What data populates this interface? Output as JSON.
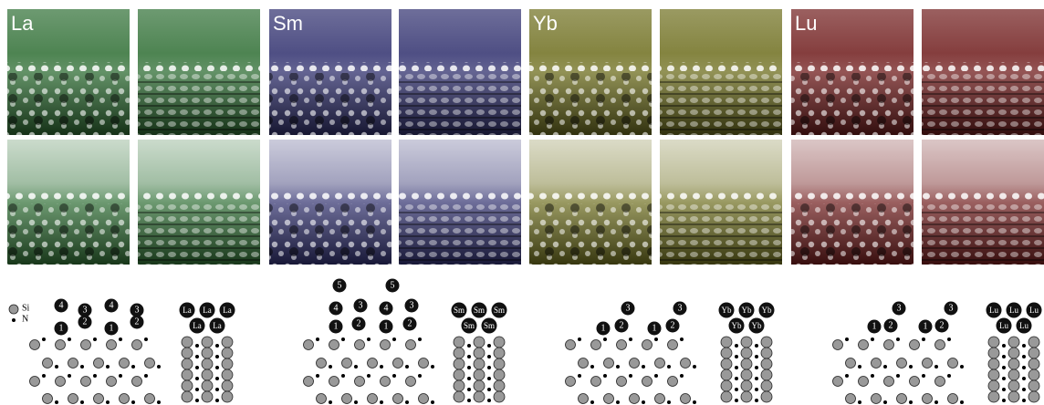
{
  "legend": {
    "si": "Si",
    "n": "N"
  },
  "groups": [
    {
      "element": "La",
      "model_labels": [
        "4",
        "3",
        "4",
        "3",
        "1",
        "2",
        "1",
        "2"
      ],
      "stack_labels": [
        "La",
        "La",
        "La",
        "La",
        "La"
      ]
    },
    {
      "element": "Sm",
      "model_labels": [
        "5",
        "5",
        "4",
        "3",
        "4",
        "3",
        "1",
        "2",
        "1",
        "2"
      ],
      "stack_labels": [
        "Sm",
        "Sm",
        "Sm",
        "Sm",
        "Sm"
      ]
    },
    {
      "element": "Yb",
      "model_labels": [
        "3",
        "3",
        "1",
        "2",
        "1",
        "2"
      ],
      "stack_labels": [
        "Yb",
        "Yb",
        "Yb",
        "Yb",
        "Yb"
      ]
    },
    {
      "element": "Lu",
      "model_labels": [
        "3",
        "3",
        "1",
        "2",
        "1",
        "2"
      ],
      "stack_labels": [
        "Lu",
        "Lu",
        "Lu",
        "Lu",
        "Lu"
      ]
    }
  ]
}
